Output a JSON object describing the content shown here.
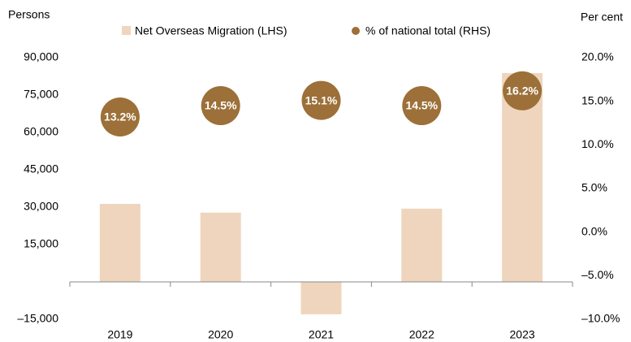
{
  "chart_data": {
    "type": "bar",
    "y_label": "Persons",
    "y2_label": "Per cent",
    "categories": [
      "2019",
      "2020",
      "2021",
      "2022",
      "2023"
    ],
    "series": [
      {
        "name": "Net Overseas Migration (LHS)",
        "color": "#efd5bd",
        "values": [
          31300,
          27800,
          -13000,
          29400,
          83800
        ]
      },
      {
        "name": "% of national total (RHS)",
        "type": "scatter",
        "axis": "y2",
        "color": "#9c7038",
        "values": [
          13.2,
          14.5,
          15.1,
          14.5,
          16.2
        ],
        "value_labels": [
          "13.2%",
          "14.5%",
          "15.1%",
          "14.5%",
          "16.2%"
        ]
      }
    ],
    "ylim": [
      -15000,
      90000
    ],
    "yticks": [
      {
        "value": -15000,
        "label": "–15,000"
      },
      {
        "value": 15000,
        "label": "15,000"
      },
      {
        "value": 30000,
        "label": "30,000"
      },
      {
        "value": 45000,
        "label": "45,000"
      },
      {
        "value": 60000,
        "label": "60,000"
      },
      {
        "value": 75000,
        "label": "75,000"
      },
      {
        "value": 90000,
        "label": "90,000"
      }
    ],
    "y2lim": [
      -10,
      20
    ],
    "y2ticks": [
      {
        "value": -10,
        "label": "–10.0%"
      },
      {
        "value": -5,
        "label": "–5.0%"
      },
      {
        "value": 0,
        "label": "0.0%"
      },
      {
        "value": 5,
        "label": "5.0%"
      },
      {
        "value": 10,
        "label": "10.0%"
      },
      {
        "value": 15,
        "label": "15.0%"
      },
      {
        "value": 20,
        "label": "20.0%"
      }
    ],
    "legend": "top"
  }
}
